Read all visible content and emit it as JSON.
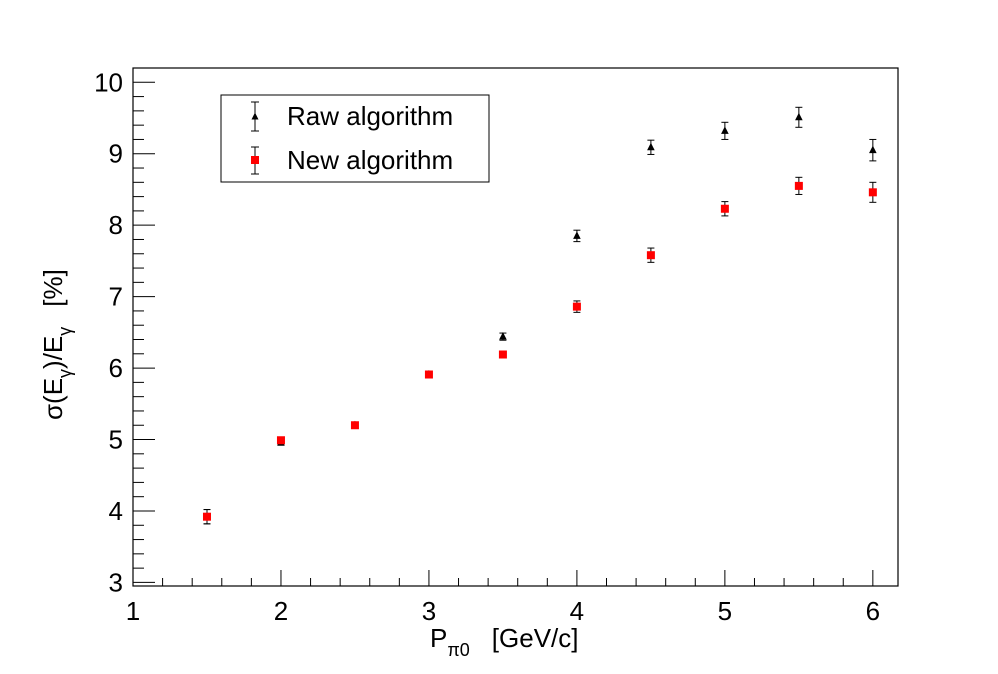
{
  "chart_data": {
    "type": "scatter",
    "title": "",
    "xlabel": {
      "main": "P",
      "sub": "π0",
      "unit": "[GeV/c]"
    },
    "ylabel": {
      "p1": "σ(E",
      "sub1": "γ",
      "p2": ")/E",
      "sub2": "γ",
      "unit": "[%]"
    },
    "xlim": [
      1.0,
      6.17
    ],
    "ylim": [
      2.95,
      10.2
    ],
    "xticks": [
      1,
      2,
      3,
      4,
      5,
      6
    ],
    "xtick_labels": [
      "1",
      "2",
      "3",
      "4",
      "5",
      "6"
    ],
    "yticks": [
      3,
      4,
      5,
      6,
      7,
      8,
      9,
      10
    ],
    "ytick_labels": [
      "3",
      "4",
      "5",
      "6",
      "7",
      "8",
      "9",
      "10"
    ],
    "grid": false,
    "legend_position": "top-left",
    "series": [
      {
        "name": "Raw algorithm",
        "marker": "triangle",
        "color": "#000000",
        "x": [
          1.5,
          2.0,
          2.5,
          3.0,
          3.5,
          4.0,
          4.5,
          5.0,
          5.5,
          6.0
        ],
        "y": [
          3.92,
          4.96,
          5.2,
          5.91,
          6.44,
          7.85,
          9.09,
          9.32,
          9.51,
          9.05
        ],
        "yerr": [
          0.1,
          0.04,
          0.03,
          0.03,
          0.05,
          0.08,
          0.1,
          0.12,
          0.14,
          0.15
        ]
      },
      {
        "name": "New algorithm",
        "marker": "square",
        "color": "#ff0000",
        "x": [
          1.5,
          2.0,
          2.5,
          3.0,
          3.5,
          4.0,
          4.5,
          5.0,
          5.5,
          6.0
        ],
        "y": [
          3.92,
          4.99,
          5.2,
          5.91,
          6.19,
          6.86,
          7.58,
          8.23,
          8.55,
          8.46
        ],
        "yerr": [
          0.1,
          0.04,
          0.03,
          0.03,
          0.04,
          0.08,
          0.1,
          0.1,
          0.12,
          0.14
        ]
      }
    ]
  }
}
